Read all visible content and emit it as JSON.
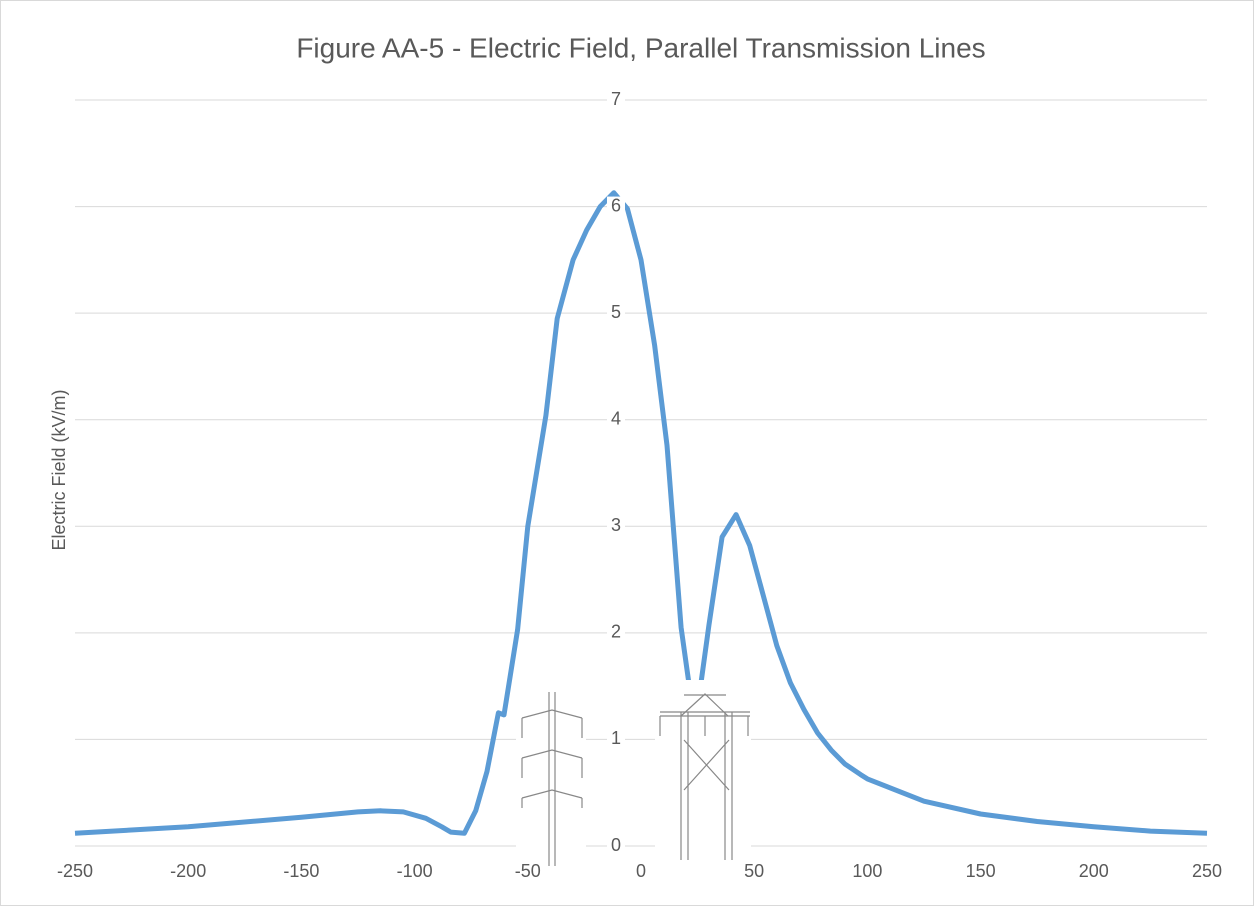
{
  "chart_data": {
    "type": "line",
    "title": "Figure AA-5 - Electric Field, Parallel Transmission Lines",
    "y_label": "Electric Field (kV/m)",
    "grid": true,
    "xlim": [
      -250,
      250
    ],
    "xticks": [
      -250,
      -200,
      -150,
      -100,
      -50,
      0,
      50,
      100,
      150,
      200,
      250
    ],
    "ylim": [
      0,
      7
    ],
    "yticks": [
      0,
      1,
      2,
      3,
      4,
      5,
      6,
      7
    ],
    "x": [
      -250,
      -200,
      -150,
      -125,
      -115,
      -105,
      -95,
      -88,
      -84,
      -78,
      -73,
      -68,
      -63,
      -60.5,
      -54.5,
      -50,
      -42,
      -37,
      -30,
      -24,
      -18,
      -12,
      -6,
      0,
      6,
      11.5,
      17.7,
      21.6,
      26.5,
      30,
      35.8,
      42,
      48,
      54,
      60,
      66,
      72,
      78,
      84,
      90,
      97,
      100,
      125,
      150,
      175,
      200,
      225,
      250
    ],
    "series": [
      {
        "color": "#5b9bd5",
        "values": [
          0.12,
          0.18,
          0.27,
          0.32,
          0.33,
          0.32,
          0.26,
          0.18,
          0.13,
          0.12,
          0.33,
          0.7,
          1.25,
          1.23,
          2.03,
          3.0,
          4.04,
          4.95,
          5.5,
          5.78,
          6.0,
          6.13,
          5.98,
          5.5,
          4.7,
          3.76,
          2.05,
          1.46,
          1.53,
          2.07,
          2.9,
          3.11,
          2.82,
          2.35,
          1.88,
          1.53,
          1.28,
          1.06,
          0.9,
          0.77,
          0.67,
          0.63,
          0.42,
          0.3,
          0.23,
          0.18,
          0.14,
          0.12
        ]
      }
    ]
  }
}
